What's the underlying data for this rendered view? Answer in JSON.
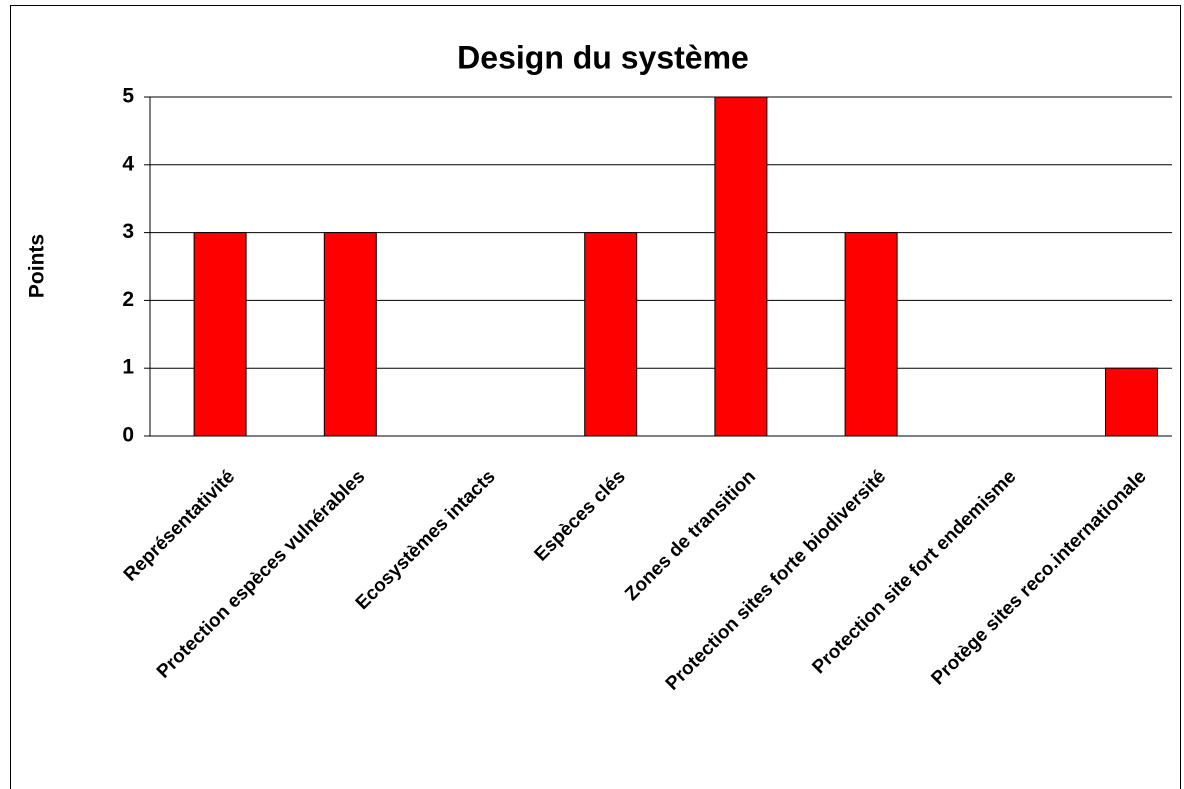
{
  "chart_data": {
    "type": "bar",
    "title": "Design du système",
    "y_label": "Points",
    "categories": [
      "Représentativité",
      "Protection espèces vulnérables",
      "Ecosystèmes intacts",
      "Espèces clés",
      "Zones de transition",
      "Protection sites forte biodiversité",
      "Protection site fort endemisme",
      "Protège sites reco.internationale"
    ],
    "values": [
      3,
      3,
      0,
      3,
      5,
      3,
      0,
      1
    ],
    "color": "#ff0000",
    "ylim": [
      0,
      5
    ],
    "yticks": [
      0,
      1,
      2,
      3,
      4,
      5
    ],
    "grid": true
  }
}
